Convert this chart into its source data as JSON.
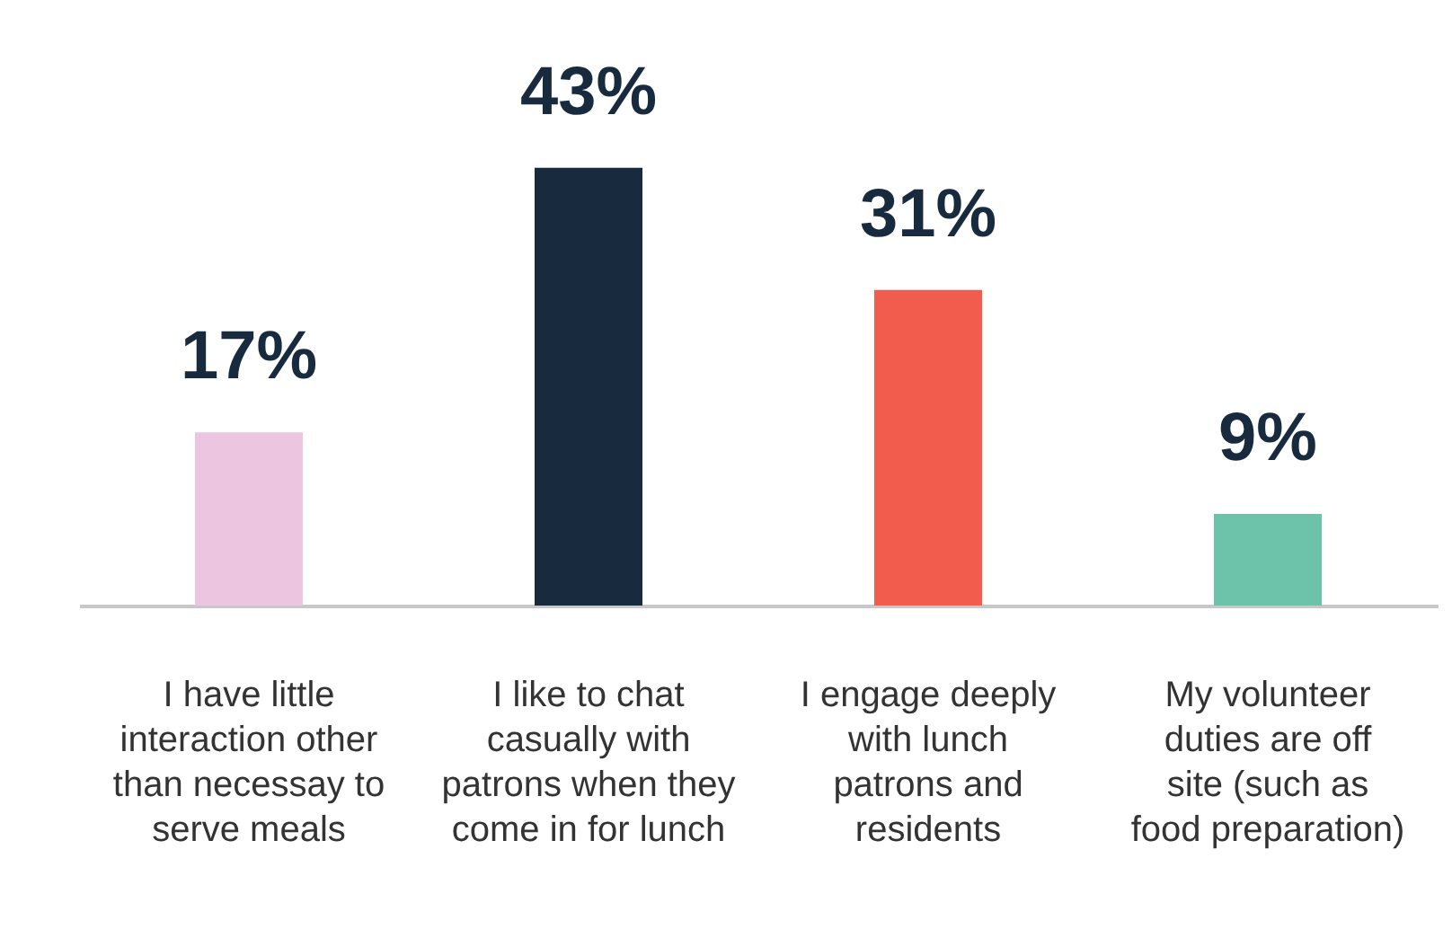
{
  "chart_data": {
    "type": "bar",
    "categories": [
      "I have little interaction other than necessay to serve meals",
      "I like to chat casually with patrons when they come in for lunch",
      "I engage deeply with lunch patrons and residents",
      "My volunteer duties are off site (such as food preparation)"
    ],
    "values": [
      17,
      43,
      31,
      9
    ],
    "colors": [
      "#ecc5e0",
      "#172a3e",
      "#f25c4c",
      "#6cc3aa"
    ],
    "value_labels": [
      "17%",
      "43%",
      "31%",
      "9%"
    ]
  }
}
